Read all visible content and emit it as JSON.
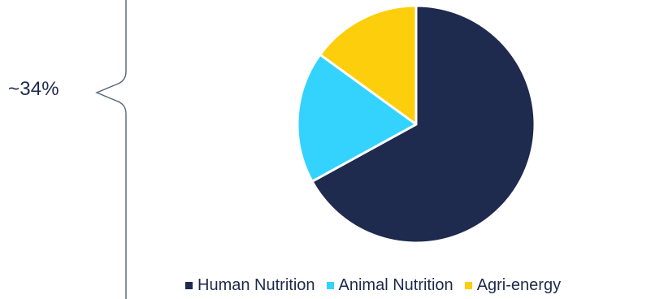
{
  "annotation": {
    "label": "~34%"
  },
  "colors": {
    "annotation_line": "#56627a",
    "text": "#1e2a4a",
    "slice_border": "#ffffff"
  },
  "chart_data": {
    "type": "pie",
    "title": "",
    "categories": [
      "Human Nutrition",
      "Animal Nutrition",
      "Agri-energy"
    ],
    "values": [
      67,
      18,
      15
    ],
    "colors": [
      "#1e2a4e",
      "#33d3fd",
      "#fdce0b"
    ],
    "start_angle_deg": 0,
    "direction": "clockwise",
    "legend": "bottom"
  }
}
